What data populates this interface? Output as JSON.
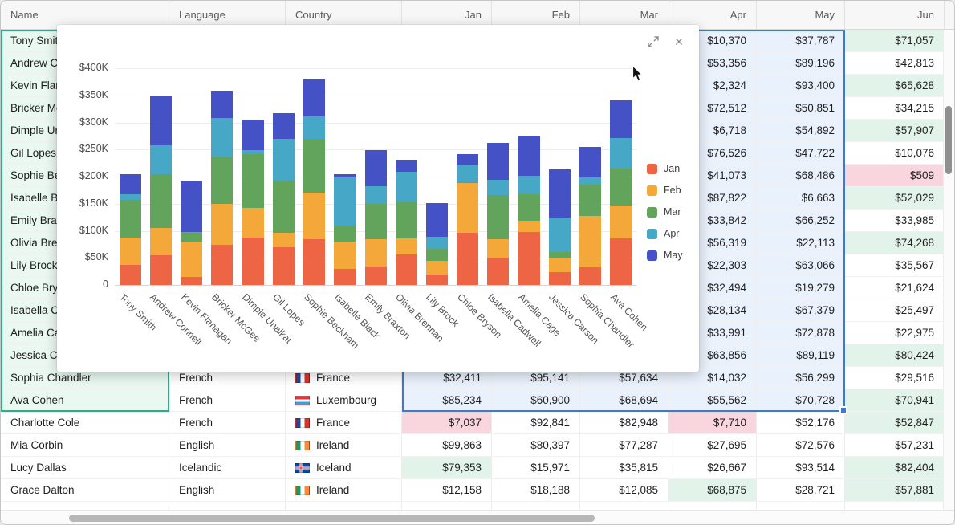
{
  "colors": {
    "selection_blue_border": "#3c78d8",
    "selection_blue_fill": "#e9f1fc",
    "selection_green_border": "#1fb486",
    "selection_green_fill": "#e9f8f1",
    "cell_green": "#e2f4e9",
    "cell_pink": "#f9d6de"
  },
  "grid": {
    "columns": [
      {
        "key": "name",
        "label": "Name",
        "align": "left"
      },
      {
        "key": "language",
        "label": "Language",
        "align": "left"
      },
      {
        "key": "country",
        "label": "Country",
        "align": "left"
      },
      {
        "key": "jan",
        "label": "Jan",
        "align": "right"
      },
      {
        "key": "feb",
        "label": "Feb",
        "align": "right"
      },
      {
        "key": "mar",
        "label": "Mar",
        "align": "right"
      },
      {
        "key": "apr",
        "label": "Apr",
        "align": "right"
      },
      {
        "key": "may",
        "label": "May",
        "align": "right"
      },
      {
        "key": "jun",
        "label": "Jun",
        "align": "right"
      }
    ],
    "rows": [
      {
        "name": "Tony Smith",
        "sel": true,
        "lang": "",
        "country": "",
        "flag": "",
        "months": [
          [
            "",
            "sel"
          ],
          [
            "",
            "sel"
          ],
          [
            "",
            "sel"
          ],
          [
            "$10,370",
            "sel"
          ],
          [
            "$37,787",
            "sel"
          ],
          [
            "$71,057",
            "green"
          ]
        ]
      },
      {
        "name": "Andrew Connell",
        "sel": true,
        "lang": "",
        "country": "",
        "flag": "",
        "months": [
          [
            "",
            "sel"
          ],
          [
            "",
            "sel"
          ],
          [
            "",
            "sel"
          ],
          [
            "$53,356",
            "sel"
          ],
          [
            "$89,196",
            "sel"
          ],
          [
            "$42,813",
            ""
          ]
        ]
      },
      {
        "name": "Kevin Flanagan",
        "sel": true,
        "lang": "",
        "country": "",
        "flag": "",
        "months": [
          [
            "",
            "sel"
          ],
          [
            "",
            "sel"
          ],
          [
            "",
            "sel"
          ],
          [
            "$2,324",
            "sel"
          ],
          [
            "$93,400",
            "sel"
          ],
          [
            "$65,628",
            "green"
          ]
        ]
      },
      {
        "name": "Bricker McGee",
        "sel": true,
        "lang": "",
        "country": "",
        "flag": "",
        "months": [
          [
            "",
            "sel"
          ],
          [
            "",
            "sel"
          ],
          [
            "",
            "sel"
          ],
          [
            "$72,512",
            "sel"
          ],
          [
            "$50,851",
            "sel"
          ],
          [
            "$34,215",
            ""
          ]
        ]
      },
      {
        "name": "Dimple Unalkat",
        "sel": true,
        "lang": "",
        "country": "",
        "flag": "",
        "months": [
          [
            "",
            "sel"
          ],
          [
            "",
            "sel"
          ],
          [
            "",
            "sel"
          ],
          [
            "$6,718",
            "sel"
          ],
          [
            "$54,892",
            "sel"
          ],
          [
            "$57,907",
            "green"
          ]
        ]
      },
      {
        "name": "Gil Lopes",
        "sel": true,
        "lang": "",
        "country": "",
        "flag": "",
        "months": [
          [
            "",
            "sel"
          ],
          [
            "",
            "sel"
          ],
          [
            "",
            "sel"
          ],
          [
            "$76,526",
            "sel"
          ],
          [
            "$47,722",
            "sel"
          ],
          [
            "$10,076",
            ""
          ]
        ]
      },
      {
        "name": "Sophie Beckham",
        "sel": true,
        "lang": "",
        "country": "",
        "flag": "",
        "months": [
          [
            "",
            "sel"
          ],
          [
            "",
            "sel"
          ],
          [
            "",
            "sel"
          ],
          [
            "$41,073",
            "sel"
          ],
          [
            "$68,486",
            "sel"
          ],
          [
            "$509",
            "pink"
          ]
        ]
      },
      {
        "name": "Isabelle Black",
        "sel": true,
        "lang": "",
        "country": "",
        "flag": "",
        "months": [
          [
            "",
            "sel"
          ],
          [
            "",
            "sel"
          ],
          [
            "",
            "sel"
          ],
          [
            "$87,822",
            "sel"
          ],
          [
            "$6,663",
            "sel"
          ],
          [
            "$52,029",
            "green"
          ]
        ]
      },
      {
        "name": "Emily Braxton",
        "sel": true,
        "lang": "",
        "country": "",
        "flag": "",
        "months": [
          [
            "",
            "sel"
          ],
          [
            "",
            "sel"
          ],
          [
            "",
            "sel"
          ],
          [
            "$33,842",
            "sel"
          ],
          [
            "$66,252",
            "sel"
          ],
          [
            "$33,985",
            ""
          ]
        ]
      },
      {
        "name": "Olivia Brennan",
        "sel": true,
        "lang": "",
        "country": "",
        "flag": "",
        "months": [
          [
            "",
            "sel"
          ],
          [
            "",
            "sel"
          ],
          [
            "",
            "sel"
          ],
          [
            "$56,319",
            "sel"
          ],
          [
            "$22,113",
            "sel"
          ],
          [
            "$74,268",
            "green"
          ]
        ]
      },
      {
        "name": "Lily Brock",
        "sel": true,
        "lang": "",
        "country": "",
        "flag": "",
        "months": [
          [
            "",
            "sel"
          ],
          [
            "",
            "sel"
          ],
          [
            "",
            "sel"
          ],
          [
            "$22,303",
            "sel"
          ],
          [
            "$63,066",
            "sel"
          ],
          [
            "$35,567",
            ""
          ]
        ]
      },
      {
        "name": "Chloe Bryson",
        "sel": true,
        "lang": "",
        "country": "",
        "flag": "",
        "months": [
          [
            "",
            "sel"
          ],
          [
            "",
            "sel"
          ],
          [
            "",
            "sel"
          ],
          [
            "$32,494",
            "sel"
          ],
          [
            "$19,279",
            "sel"
          ],
          [
            "$21,624",
            ""
          ]
        ]
      },
      {
        "name": "Isabella Cadwell",
        "sel": true,
        "lang": "",
        "country": "",
        "flag": "",
        "months": [
          [
            "",
            "sel"
          ],
          [
            "",
            "sel"
          ],
          [
            "",
            "sel"
          ],
          [
            "$28,134",
            "sel"
          ],
          [
            "$67,379",
            "sel"
          ],
          [
            "$25,497",
            ""
          ]
        ]
      },
      {
        "name": "Amelia Cage",
        "sel": true,
        "lang": "",
        "country": "",
        "flag": "",
        "months": [
          [
            "",
            "sel"
          ],
          [
            "",
            "sel"
          ],
          [
            "",
            "sel"
          ],
          [
            "$33,991",
            "sel"
          ],
          [
            "$72,878",
            "sel"
          ],
          [
            "$22,975",
            ""
          ]
        ]
      },
      {
        "name": "Jessica Carson",
        "sel": true,
        "lang": "",
        "country": "",
        "flag": "",
        "months": [
          [
            "",
            "sel"
          ],
          [
            "",
            "sel"
          ],
          [
            "",
            "sel"
          ],
          [
            "$63,856",
            "sel"
          ],
          [
            "$89,119",
            "sel"
          ],
          [
            "$80,424",
            "green"
          ]
        ]
      },
      {
        "name": "Sophia Chandler",
        "sel": true,
        "lang": "French",
        "country": "France",
        "flag": "fr",
        "months": [
          [
            "$32,411",
            "sel"
          ],
          [
            "$95,141",
            "sel"
          ],
          [
            "$57,634",
            "sel"
          ],
          [
            "$14,032",
            "sel"
          ],
          [
            "$56,299",
            "sel"
          ],
          [
            "$29,516",
            ""
          ]
        ]
      },
      {
        "name": "Ava Cohen",
        "sel": true,
        "lang": "French",
        "country": "Luxembourg",
        "flag": "lu",
        "months": [
          [
            "$85,234",
            "sel"
          ],
          [
            "$60,900",
            "sel"
          ],
          [
            "$68,694",
            "sel"
          ],
          [
            "$55,562",
            "sel"
          ],
          [
            "$70,728",
            "sel"
          ],
          [
            "$70,941",
            "green"
          ]
        ]
      },
      {
        "name": "Charlotte Cole",
        "sel": false,
        "lang": "French",
        "country": "France",
        "flag": "fr",
        "months": [
          [
            "$7,037",
            "pink"
          ],
          [
            "$92,841",
            ""
          ],
          [
            "$82,948",
            ""
          ],
          [
            "$7,710",
            "pink"
          ],
          [
            "$52,176",
            ""
          ],
          [
            "$52,847",
            "green"
          ]
        ]
      },
      {
        "name": "Mia Corbin",
        "sel": false,
        "lang": "English",
        "country": "Ireland",
        "flag": "ie",
        "months": [
          [
            "$99,863",
            ""
          ],
          [
            "$80,397",
            ""
          ],
          [
            "$77,287",
            ""
          ],
          [
            "$27,695",
            ""
          ],
          [
            "$72,576",
            ""
          ],
          [
            "$57,231",
            ""
          ]
        ]
      },
      {
        "name": "Lucy Dallas",
        "sel": false,
        "lang": "Icelandic",
        "country": "Iceland",
        "flag": "is",
        "months": [
          [
            "$79,353",
            "green"
          ],
          [
            "$15,971",
            ""
          ],
          [
            "$35,815",
            ""
          ],
          [
            "$26,667",
            ""
          ],
          [
            "$93,514",
            ""
          ],
          [
            "$82,404",
            "green"
          ]
        ]
      },
      {
        "name": "Grace Dalton",
        "sel": false,
        "lang": "English",
        "country": "Ireland",
        "flag": "ie",
        "months": [
          [
            "$12,158",
            ""
          ],
          [
            "$18,188",
            ""
          ],
          [
            "$12,085",
            ""
          ],
          [
            "$68,875",
            "green"
          ],
          [
            "$28,721",
            ""
          ],
          [
            "$57,881",
            "green"
          ]
        ]
      }
    ]
  },
  "panel": {
    "icons": {
      "close": "✕",
      "expand": "expand-diagonal-arrows"
    }
  },
  "chart_data": {
    "type": "bar",
    "stacked": true,
    "title": "",
    "categories": [
      "Tony Smith",
      "Andrew Connell",
      "Kevin Flanagan",
      "Bricker McGee",
      "Dimple Unalkat",
      "Gil Lopes",
      "Sophie Beckham",
      "Isabelle Black",
      "Emily Braxton",
      "Olivia Brennan",
      "Lily Brock",
      "Chloe Bryson",
      "Isabella Cadwell",
      "Amelia Cage",
      "Jessica Carson",
      "Sophia Chandler",
      "Ava Cohen"
    ],
    "series": [
      {
        "name": "Jan",
        "color": "#ee6545",
        "values": [
          37000,
          55000,
          15000,
          74000,
          88000,
          70000,
          84000,
          30000,
          34000,
          56000,
          19000,
          97000,
          50000,
          98000,
          24000,
          32411,
          85234
        ]
      },
      {
        "name": "Feb",
        "color": "#f4a83a",
        "values": [
          50000,
          50000,
          65000,
          76000,
          54000,
          26000,
          86000,
          50000,
          50000,
          30000,
          25000,
          91000,
          34000,
          20000,
          25000,
          95141,
          60900
        ]
      },
      {
        "name": "Mar",
        "color": "#63a45c",
        "values": [
          70000,
          100000,
          16000,
          85000,
          100000,
          97000,
          100000,
          30000,
          65000,
          66000,
          22000,
          2000,
          82000,
          49000,
          12000,
          57634,
          68694
        ]
      },
      {
        "name": "Apr",
        "color": "#47a7c7",
        "values": [
          10370,
          53356,
          2324,
          72512,
          6718,
          76526,
          41073,
          87822,
          33842,
          56319,
          22303,
          32494,
          28134,
          33991,
          63856,
          14032,
          55562
        ]
      },
      {
        "name": "May",
        "color": "#4452c6",
        "values": [
          37787,
          89196,
          93400,
          50851,
          54892,
          47722,
          68486,
          6663,
          66252,
          22113,
          63066,
          19279,
          67379,
          72878,
          89119,
          56299,
          70728
        ]
      }
    ],
    "ylim": [
      0,
      400000
    ],
    "y_tick_labels": [
      "$400K",
      "$350K",
      "$300K",
      "$250K",
      "$200K",
      "$150K",
      "$100K",
      "$50K",
      "0"
    ],
    "grid": true,
    "legend_position": "right"
  }
}
